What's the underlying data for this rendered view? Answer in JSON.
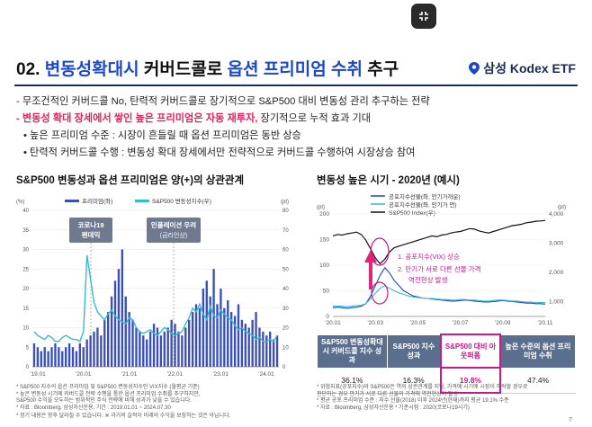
{
  "slide": {
    "title_prefix": "02. ",
    "title_highlight1": "변동성확대시",
    "title_mid": " 커버드콜로 ",
    "title_highlight2": "옵션 프리미엄 수취",
    "title_suffix": " 추구",
    "brand": "삼성 Kodex ETF",
    "page_number": "7"
  },
  "bullets": {
    "line1": "- 무조건적인 커버드콜 No, 탄력적 커버드콜로 장기적으로 S&P500 대비 변동성 관리 추구하는 전략",
    "line2_red": "- 변동성 확대 장세에서 쌓인 높은 프리미엄은 자동 재투자,",
    "line2_rest": " 장기적으로 누적 효과 기대",
    "line3": "• 높은 프리미엄 수준 : 시장이 흔들릴 때 옵션 프리미엄은 동반 상승",
    "line4": "• 탄력적 커버드콜 수행 : 변동성 확대 장세에서만 전략적으로 커버드콜 수행하여 시장상승 참여"
  },
  "left_chart": {
    "section_title": "S&P500 변동성과 옵션 프리미엄은 양(+)의 상관관계",
    "legend_bar": "프리미엄(좌)",
    "legend_line": "S&P500 변동성지수(우)",
    "left_unit": "(%)",
    "right_unit": "(pt)",
    "annotation1_line1": "코로나19",
    "annotation1_line2": "팬데믹",
    "annotation2_line1": "인플레이션 우려",
    "annotation2_line2": "(금리인상)",
    "footnote1": "* S&P500 지수의 옵션 프리미엄 및 S&P500 변동성지수인 VIX지수 (월평균 기준)",
    "footnote2": "* 높은 변동성 시기에 커버드콜 전략 수행을 통한 옵션 프리미엄 수취를 추구하지만,",
    "footnote3": "  S&P500 수익을 모두하는 범위적인 주식 전략에 비해 성과가 낮을 수 있습니다.",
    "footnote4": "* 자료 : Bloomberg, 삼성자산운용, 기간 : 2019.01.01 ~ 2024.07.30",
    "footnote5": "* 정기 내용은 향후 달라질 수 있습니다. ※ 과거의 실적이 미래의 수익을 보장하는 것은 아닙니다."
  },
  "right_chart": {
    "section_title": "변동성 높은 시기 - 2020년 (예시)",
    "legend1": "공포지수선물(좌, 만기가까운)",
    "legend2": "공포지수선물(좌, 만기가 먼)",
    "legend3": "S&P500 Index(우)",
    "left_unit": "(pt)",
    "right_unit": "(pt)",
    "note1": "1. 공포지수(VIX) 상승",
    "note2": "2. 만기가 서로 다른 선물 가격",
    "note3": "역전현상 발생",
    "footnote1": "* 위험지표(공포지수)와 S&P500은 역의 상관관계를 지님, 가격에 시기에 시장이 하락할 경우로",
    "footnote2": "  판단하는 경우 만기가 서로 다른 선물의 가격에 역전현상이 발생",
    "footnote3": "* 평균 공포 프리미엄 수준 : 지수 선물(2018) 이후 2024년(현재)까지 평균 19.1% 수준",
    "footnote4": "* 자료 : Bloomberg, 삼성자산운용 * 기준시점 : 2020(코로나19시기)"
  },
  "table": {
    "headers": [
      "S&P500 변동성확대시 커버드콜 지수 성과",
      "S&P500 지수 성과",
      "S&P500 대비 아웃퍼폼",
      "높은 수준의 옵션 프리미엄 수취"
    ],
    "values": [
      "36.1%",
      "16.3%",
      "19.8%",
      "47.4%"
    ]
  },
  "chart_data": [
    {
      "type": "bar",
      "title": "S&P500 변동성과 옵션 프리미엄은 양(+)의 상관관계",
      "series": [
        {
          "name": "프리미엄(좌)",
          "axis": "left",
          "type": "bar",
          "values": [
            6,
            5,
            4,
            5,
            4,
            5,
            6,
            5,
            4,
            5,
            6,
            5,
            4,
            6,
            5,
            7,
            8,
            9,
            10,
            8,
            12,
            14,
            18,
            22,
            25,
            30,
            18,
            14,
            12,
            10,
            9,
            8,
            7,
            9,
            11,
            10,
            8,
            9,
            10,
            12,
            11,
            9,
            8,
            10,
            12,
            14,
            16,
            15,
            20,
            22,
            18,
            25,
            16,
            20,
            15,
            17,
            14,
            13,
            16,
            12,
            11,
            10,
            12,
            14,
            10,
            9,
            8,
            9,
            7,
            8
          ]
        },
        {
          "name": "S&P500 변동성지수(우)",
          "axis": "right",
          "type": "line",
          "values": [
            18,
            16,
            15,
            14,
            16,
            15,
            13,
            13,
            15,
            16,
            15,
            14,
            14,
            13,
            18,
            57,
            45,
            33,
            28,
            26,
            24,
            27,
            29,
            26,
            24,
            23,
            22,
            25,
            24,
            20,
            18,
            17,
            18,
            19,
            17,
            16,
            18,
            20,
            19,
            17,
            16,
            17,
            18,
            22,
            25,
            30,
            28,
            32,
            27,
            24,
            31,
            26,
            25,
            29,
            27,
            25,
            24,
            21,
            19,
            20,
            18,
            17,
            16,
            14,
            15,
            13,
            13,
            14,
            13,
            16
          ]
        }
      ],
      "left_axis": {
        "label": "(%)",
        "ticks": [
          0,
          5,
          10,
          15,
          20,
          25,
          30,
          35,
          40
        ]
      },
      "right_axis": {
        "label": "(pt)",
        "ticks": [
          0,
          10,
          20,
          30,
          40,
          50,
          60,
          70,
          80
        ]
      },
      "x_tick_labels": [
        "'19.01",
        "'20.01",
        "'21.01",
        "'22.01",
        "'23.01",
        "'24.01"
      ]
    },
    {
      "type": "line",
      "title": "변동성 높은 시기 - 2020년 (예시)",
      "series": [
        {
          "name": "공포지수선물(좌, 만기가까운)",
          "axis": "left",
          "values": [
            17,
            18,
            17,
            16,
            17,
            18,
            20,
            25,
            40,
            60,
            80,
            95,
            85,
            70,
            60,
            50,
            45,
            40,
            38,
            36,
            35,
            34,
            33,
            32,
            31,
            30,
            30,
            31,
            32,
            31,
            30,
            29,
            28,
            28,
            29,
            30,
            31,
            30,
            29,
            28,
            27,
            26,
            26,
            25,
            25,
            24
          ]
        },
        {
          "name": "공포지수선물(좌, 만기가 먼)",
          "axis": "left",
          "values": [
            20,
            20,
            20,
            19,
            20,
            21,
            22,
            25,
            35,
            45,
            55,
            60,
            55,
            50,
            46,
            43,
            40,
            38,
            37,
            36,
            35,
            35,
            34,
            33,
            33,
            32,
            32,
            33,
            33,
            32,
            32,
            31,
            30,
            30,
            31,
            32,
            32,
            31,
            30,
            30,
            29,
            28,
            28,
            27,
            27,
            27
          ]
        },
        {
          "name": "S&P500 Index(우)",
          "axis": "right",
          "values": [
            3250,
            3300,
            3280,
            3320,
            3350,
            3380,
            3300,
            3100,
            2800,
            2500,
            2300,
            2450,
            2700,
            2850,
            2900,
            2950,
            3000,
            3050,
            3100,
            3150,
            3200,
            3250,
            3220,
            3280,
            3300,
            3350,
            3380,
            3400,
            3450,
            3500,
            3480,
            3420,
            3380,
            3350,
            3400,
            3450,
            3500,
            3550,
            3600,
            3620,
            3650,
            3700,
            3720,
            3750,
            3760,
            3780
          ]
        }
      ],
      "left_axis": {
        "label": "(pt)",
        "ticks": [
          0,
          50,
          100,
          150,
          200
        ]
      },
      "right_axis": {
        "label": "(pt)",
        "ticks": [
          "1,000",
          "2,000",
          "3,000",
          "4,000"
        ]
      },
      "x_tick_labels": [
        "'20.01",
        "'20.03",
        "'20.05",
        "'20.07",
        "'20.09",
        "'20.11"
      ]
    }
  ]
}
